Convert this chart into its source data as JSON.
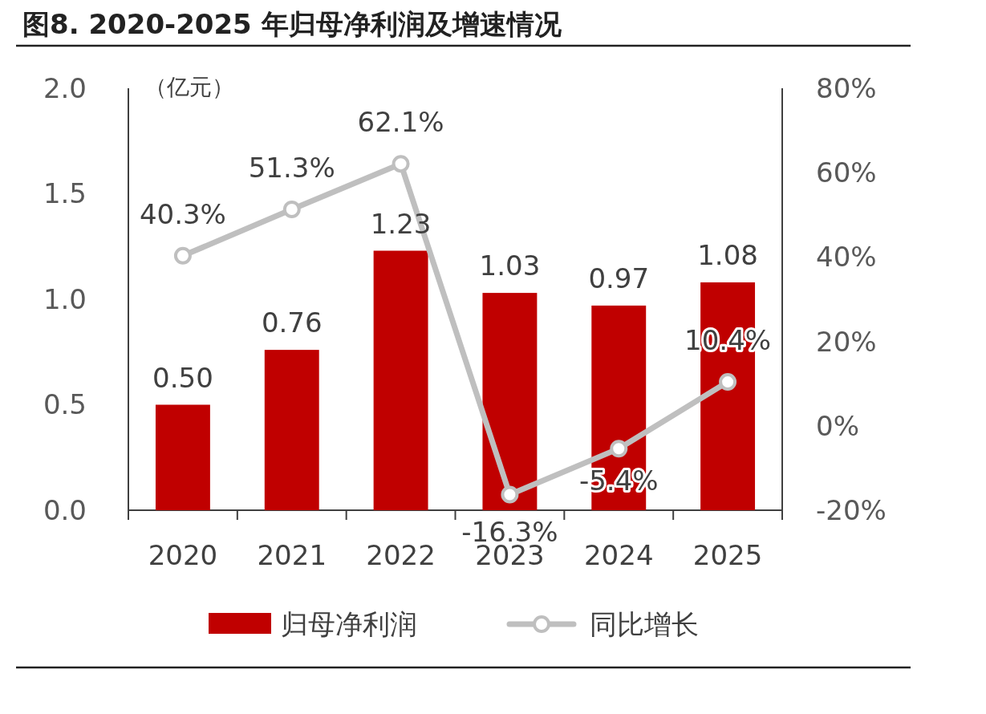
{
  "chart_data": {
    "type": "bar",
    "title": "图8. 2020-2025 年归母净利润及增速情况",
    "ylabel": "（亿元）",
    "categories": [
      "2020",
      "2021",
      "2022",
      "2023",
      "2024",
      "2025"
    ],
    "series": [
      {
        "name": "归母净利润",
        "color": "#c00000",
        "values": [
          0.5,
          0.76,
          1.23,
          1.03,
          0.97,
          1.08
        ],
        "value_labels": [
          "0.50",
          "0.76",
          "1.23",
          "1.03",
          "0.97",
          "1.08"
        ]
      },
      {
        "name": "同比增长",
        "type": "line",
        "axis": "y2",
        "color": "#bfbfbf",
        "marker": "circle",
        "values": [
          40.3,
          51.3,
          62.1,
          -16.3,
          -5.4,
          10.4
        ],
        "value_labels": [
          "40.3%",
          "51.3%",
          "62.1%",
          "-16.3%",
          "-5.4%",
          "10.4%"
        ]
      }
    ],
    "ylim": [
      0,
      2
    ],
    "yticks": [
      {
        "value": 0,
        "label": "0.0"
      },
      {
        "value": 0.5,
        "label": "0.5"
      },
      {
        "value": 1,
        "label": "1.0"
      },
      {
        "value": 1.5,
        "label": "1.5"
      },
      {
        "value": 2,
        "label": "2.0"
      }
    ],
    "y2lim": [
      -20,
      80
    ],
    "y2ticks": [
      {
        "value": -20,
        "label": "-20%"
      },
      {
        "value": 0,
        "label": "0%"
      },
      {
        "value": 20,
        "label": "20%"
      },
      {
        "value": 40,
        "label": "40%"
      },
      {
        "value": 60,
        "label": "60%"
      },
      {
        "value": 80,
        "label": "80%"
      }
    ],
    "legend": "bottom"
  }
}
